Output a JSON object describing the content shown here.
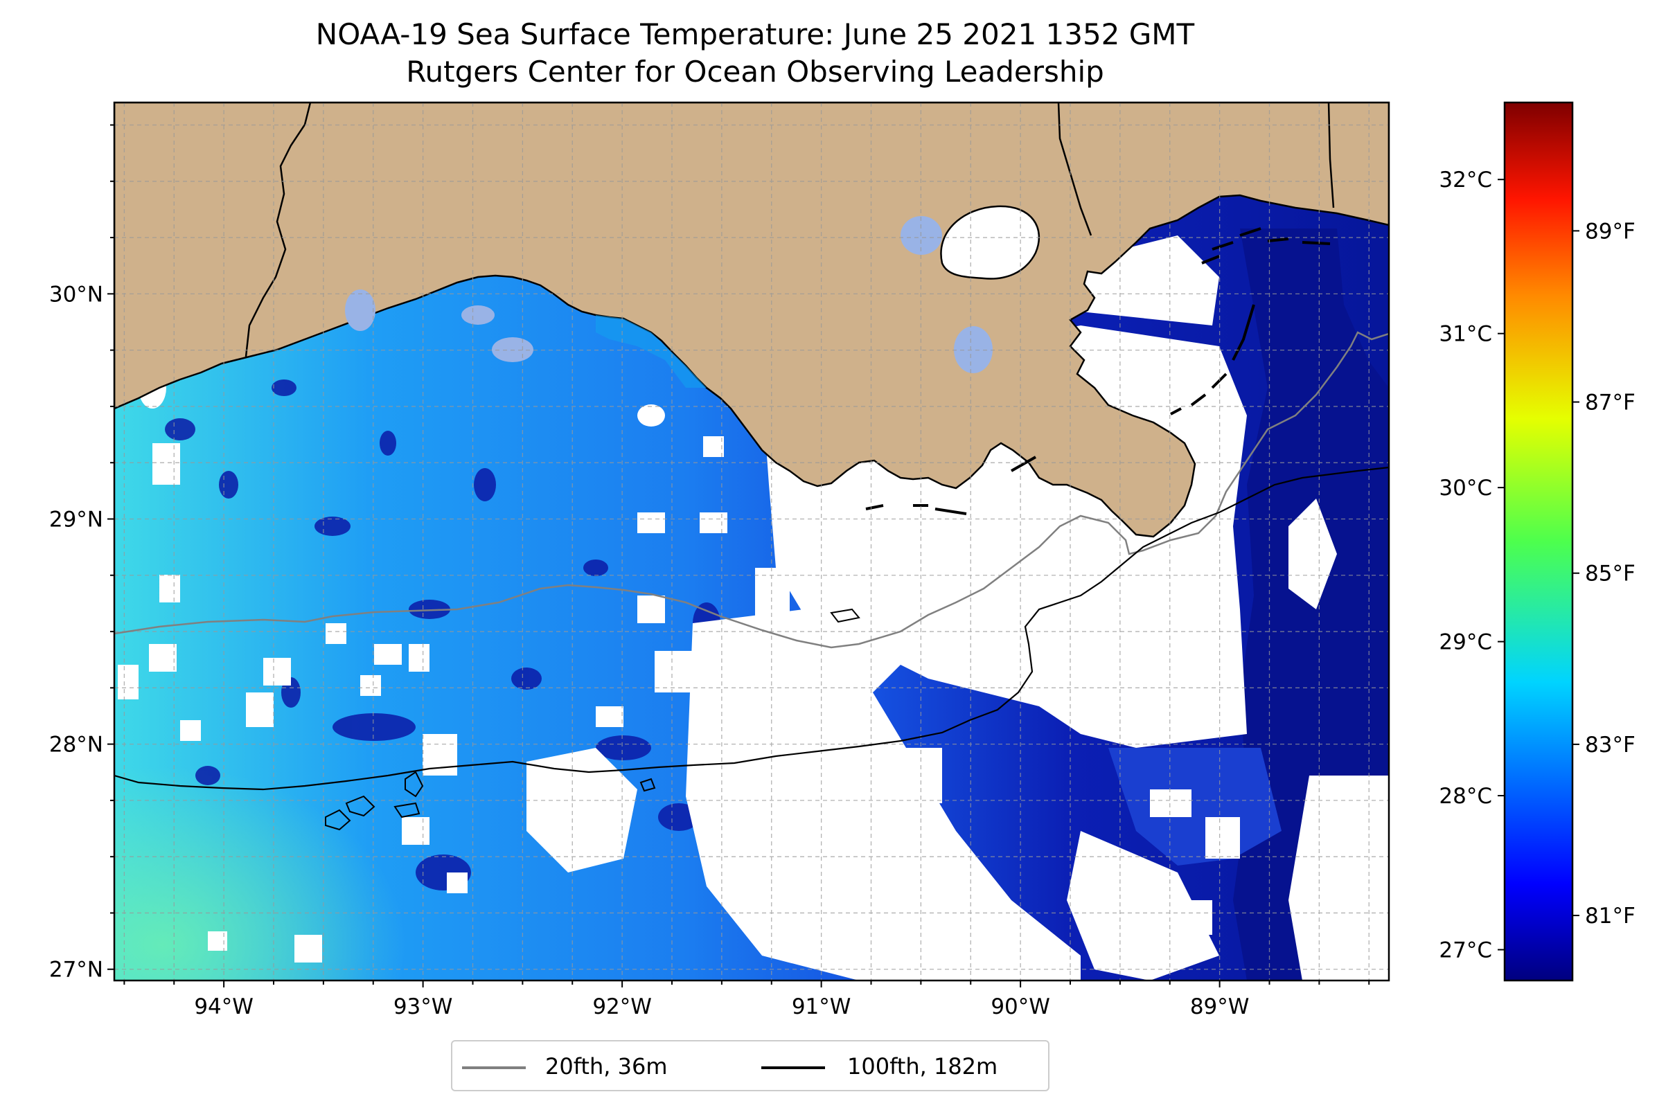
{
  "title": {
    "line1": "NOAA-19 Sea Surface Temperature: June 25 2021 1352 GMT",
    "line2": "Rutgers Center for Ocean Observing Leadership"
  },
  "map": {
    "lon_range": [
      -94.55,
      -88.15
    ],
    "lat_range": [
      26.95,
      30.85
    ],
    "lon_ticks": [
      {
        "value": -94,
        "label": "94°W"
      },
      {
        "value": -93,
        "label": "93°W"
      },
      {
        "value": -92,
        "label": "92°W"
      },
      {
        "value": -91,
        "label": "91°W"
      },
      {
        "value": -90,
        "label": "90°W"
      },
      {
        "value": -89,
        "label": "89°W"
      }
    ],
    "lat_ticks": [
      {
        "value": 30,
        "label": "30°N"
      },
      {
        "value": 29,
        "label": "29°N"
      },
      {
        "value": 28,
        "label": "28°N"
      },
      {
        "value": 27,
        "label": "27°N"
      }
    ],
    "grid": true,
    "colors": {
      "land": "#cfb18b",
      "inland_water": "#99b3e6",
      "cloud": "#ffffff",
      "contour_20fth": "#808080",
      "contour_100fth": "#000000"
    }
  },
  "colorbar": {
    "colormap": "jet",
    "range_c": [
      26.8,
      32.5
    ],
    "celsius_ticks": [
      {
        "value": 27,
        "label": "27°C"
      },
      {
        "value": 28,
        "label": "28°C"
      },
      {
        "value": 29,
        "label": "29°C"
      },
      {
        "value": 30,
        "label": "30°C"
      },
      {
        "value": 31,
        "label": "31°C"
      },
      {
        "value": 32,
        "label": "32°C"
      }
    ],
    "fahrenheit_ticks": [
      {
        "value": 81,
        "label": "81°F"
      },
      {
        "value": 83,
        "label": "83°F"
      },
      {
        "value": 85,
        "label": "85°F"
      },
      {
        "value": 87,
        "label": "87°F"
      },
      {
        "value": 89,
        "label": "89°F"
      }
    ]
  },
  "legend": {
    "placement": "bottom-center",
    "items": [
      {
        "label": "20fth, 36m",
        "color": "#808080"
      },
      {
        "label": "100fth, 182m",
        "color": "#000000"
      }
    ]
  }
}
